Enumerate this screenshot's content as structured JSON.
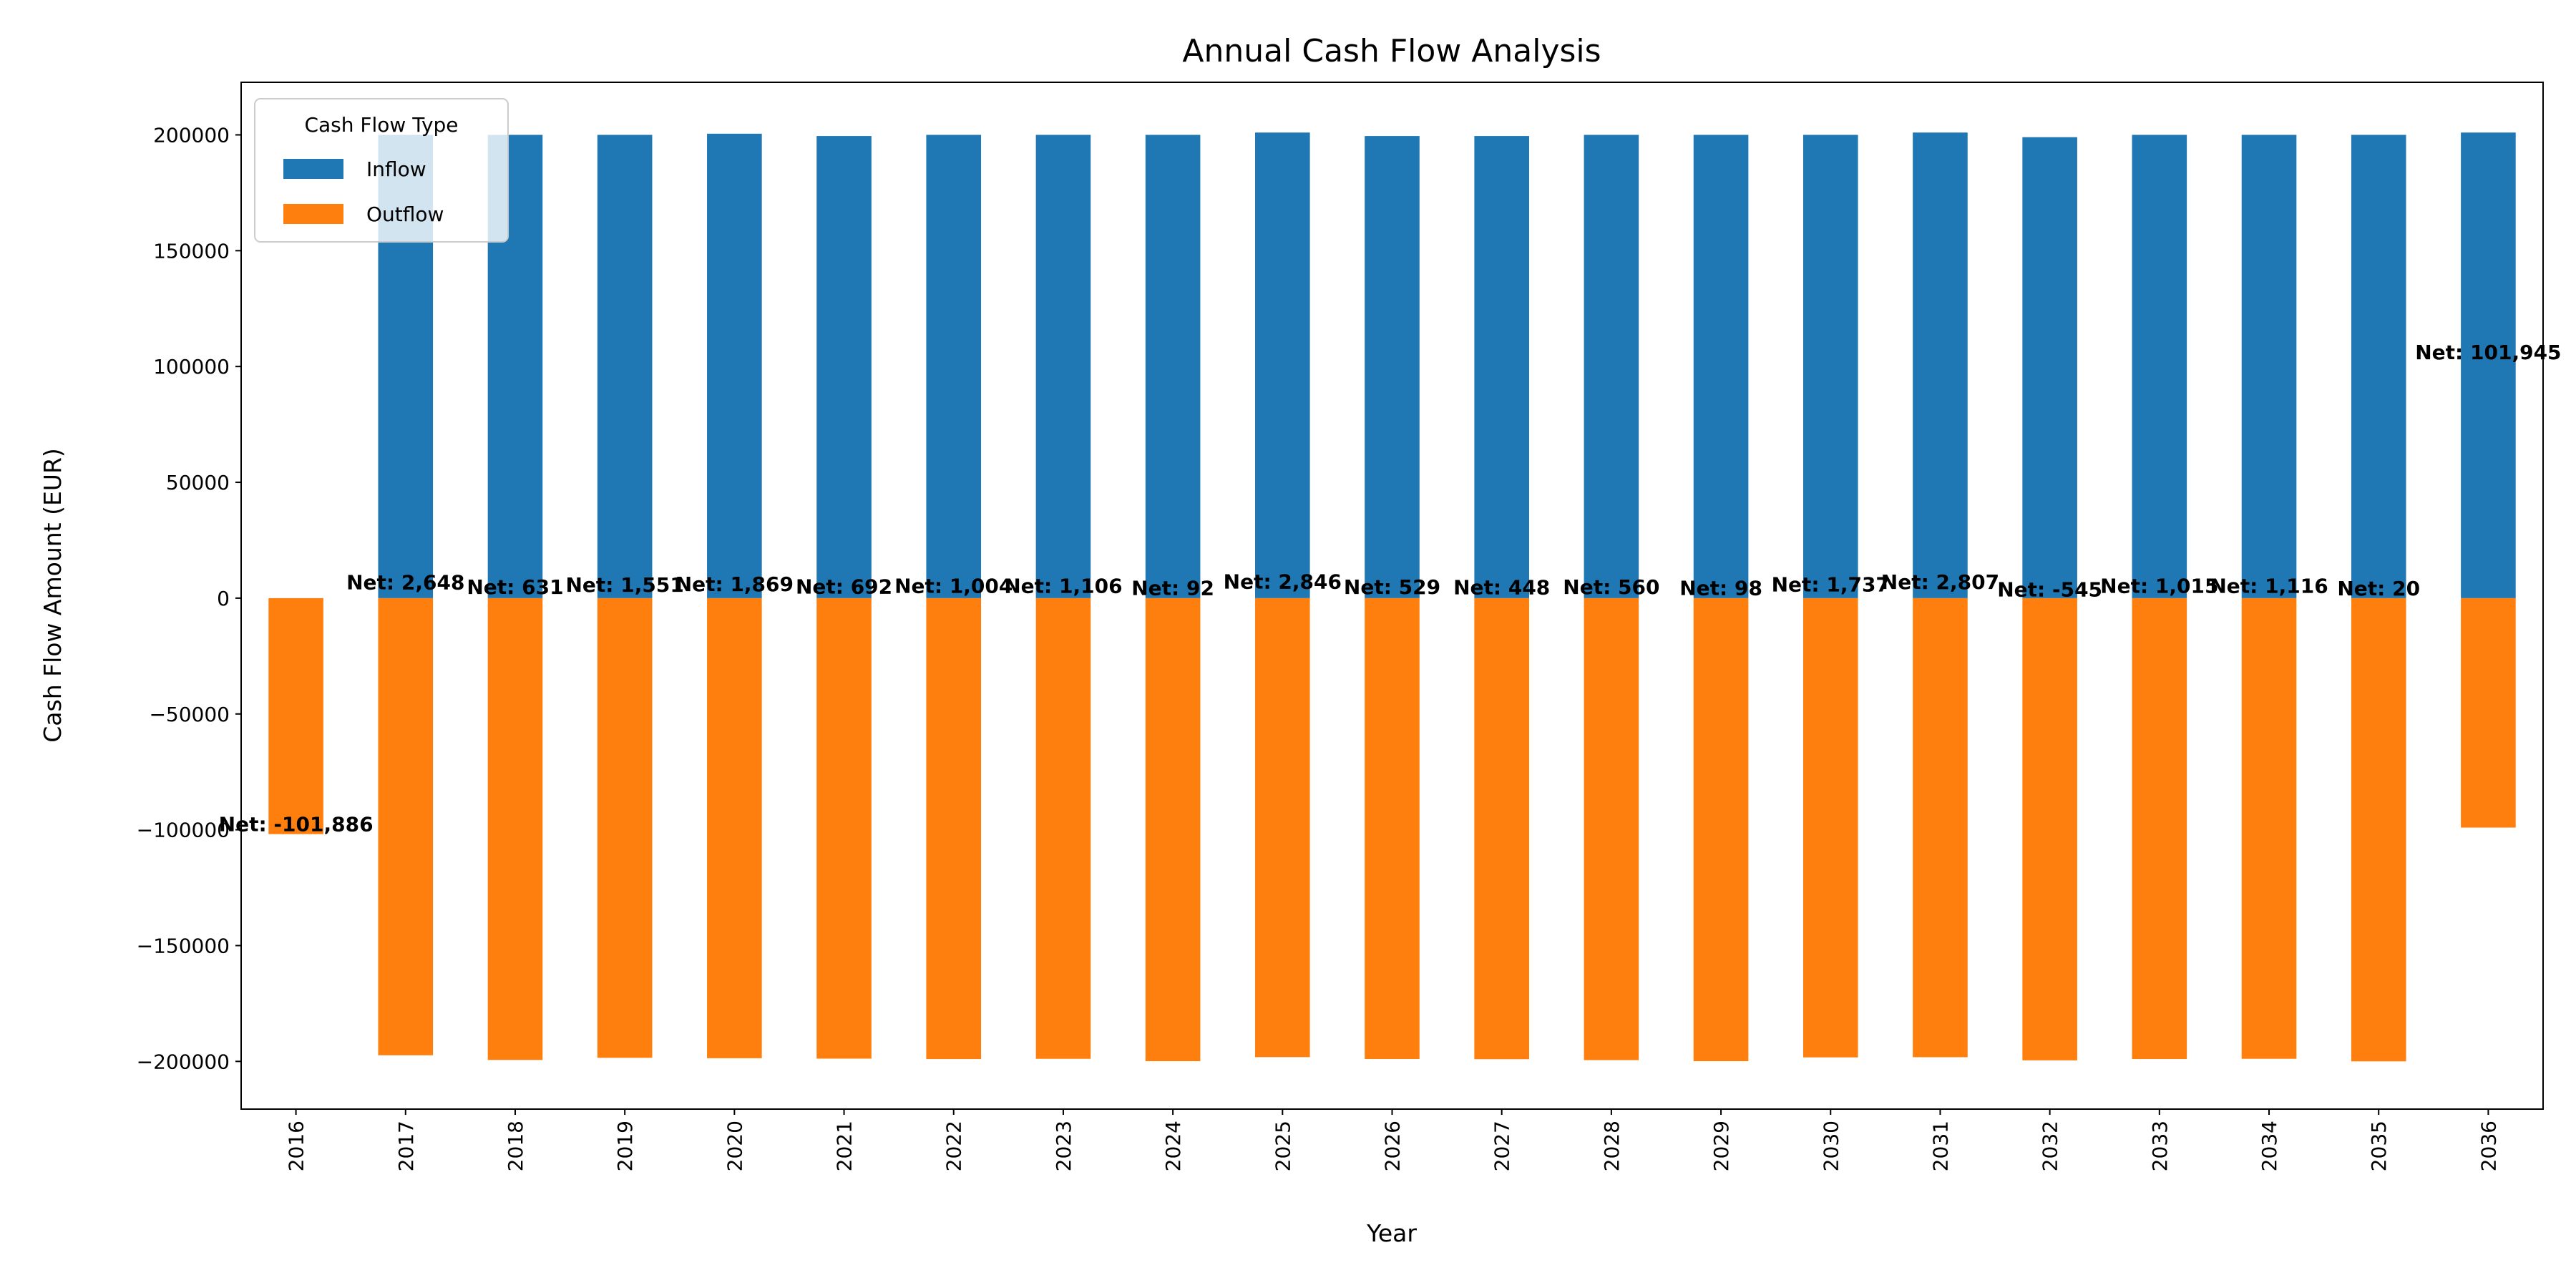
{
  "chart_data": {
    "type": "stacked_bar",
    "title": "Annual Cash Flow Analysis",
    "x_label": "Year",
    "y_label": "Cash Flow Amount (EUR)",
    "categories": [
      "2016",
      "2017",
      "2018",
      "2019",
      "2020",
      "2021",
      "2022",
      "2023",
      "2024",
      "2025",
      "2026",
      "2027",
      "2028",
      "2029",
      "2030",
      "2031",
      "2032",
      "2033",
      "2034",
      "2035",
      "2036"
    ],
    "legend_title": "Cash Flow Type",
    "legend_position": "upper left",
    "series": [
      {
        "name": "Inflow",
        "color": "#1f77b4",
        "values": [
          0,
          200000,
          200000,
          200000,
          200500,
          199500,
          200000,
          200000,
          200000,
          201000,
          199500,
          199500,
          200000,
          200000,
          200000,
          201000,
          199000,
          200000,
          200000,
          200000,
          201000
        ]
      },
      {
        "name": "Outflow",
        "color": "#ff7f0e",
        "values": [
          -101886,
          -197352,
          -199369,
          -198449,
          -198631,
          -198808,
          -198996,
          -198894,
          -199908,
          -198154,
          -198971,
          -199052,
          -199440,
          -199902,
          -198263,
          -198193,
          -199545,
          -198985,
          -198884,
          -199980,
          -99055
        ]
      }
    ],
    "annotations": [
      "Net: -101,886",
      "Net: 2,648",
      "Net: 631",
      "Net: 1,551",
      "Net: 1,869",
      "Net: 692",
      "Net: 1,004",
      "Net: 1,106",
      "Net: 92",
      "Net: 2,846",
      "Net: 529",
      "Net: 448",
      "Net: 560",
      "Net: 98",
      "Net: 1,737",
      "Net: 2,807",
      "Net: -545",
      "Net: 1,015",
      "Net: 1,116",
      "Net: 20",
      "Net: 101,945"
    ],
    "ylim": [
      -220600,
      222700
    ],
    "yticks": [
      {
        "value": -200000,
        "label": "−200000"
      },
      {
        "value": -150000,
        "label": "−150000"
      },
      {
        "value": -100000,
        "label": "−100000"
      },
      {
        "value": -50000,
        "label": "−50000"
      },
      0,
      50000,
      100000,
      150000,
      200000
    ],
    "grid": false
  }
}
